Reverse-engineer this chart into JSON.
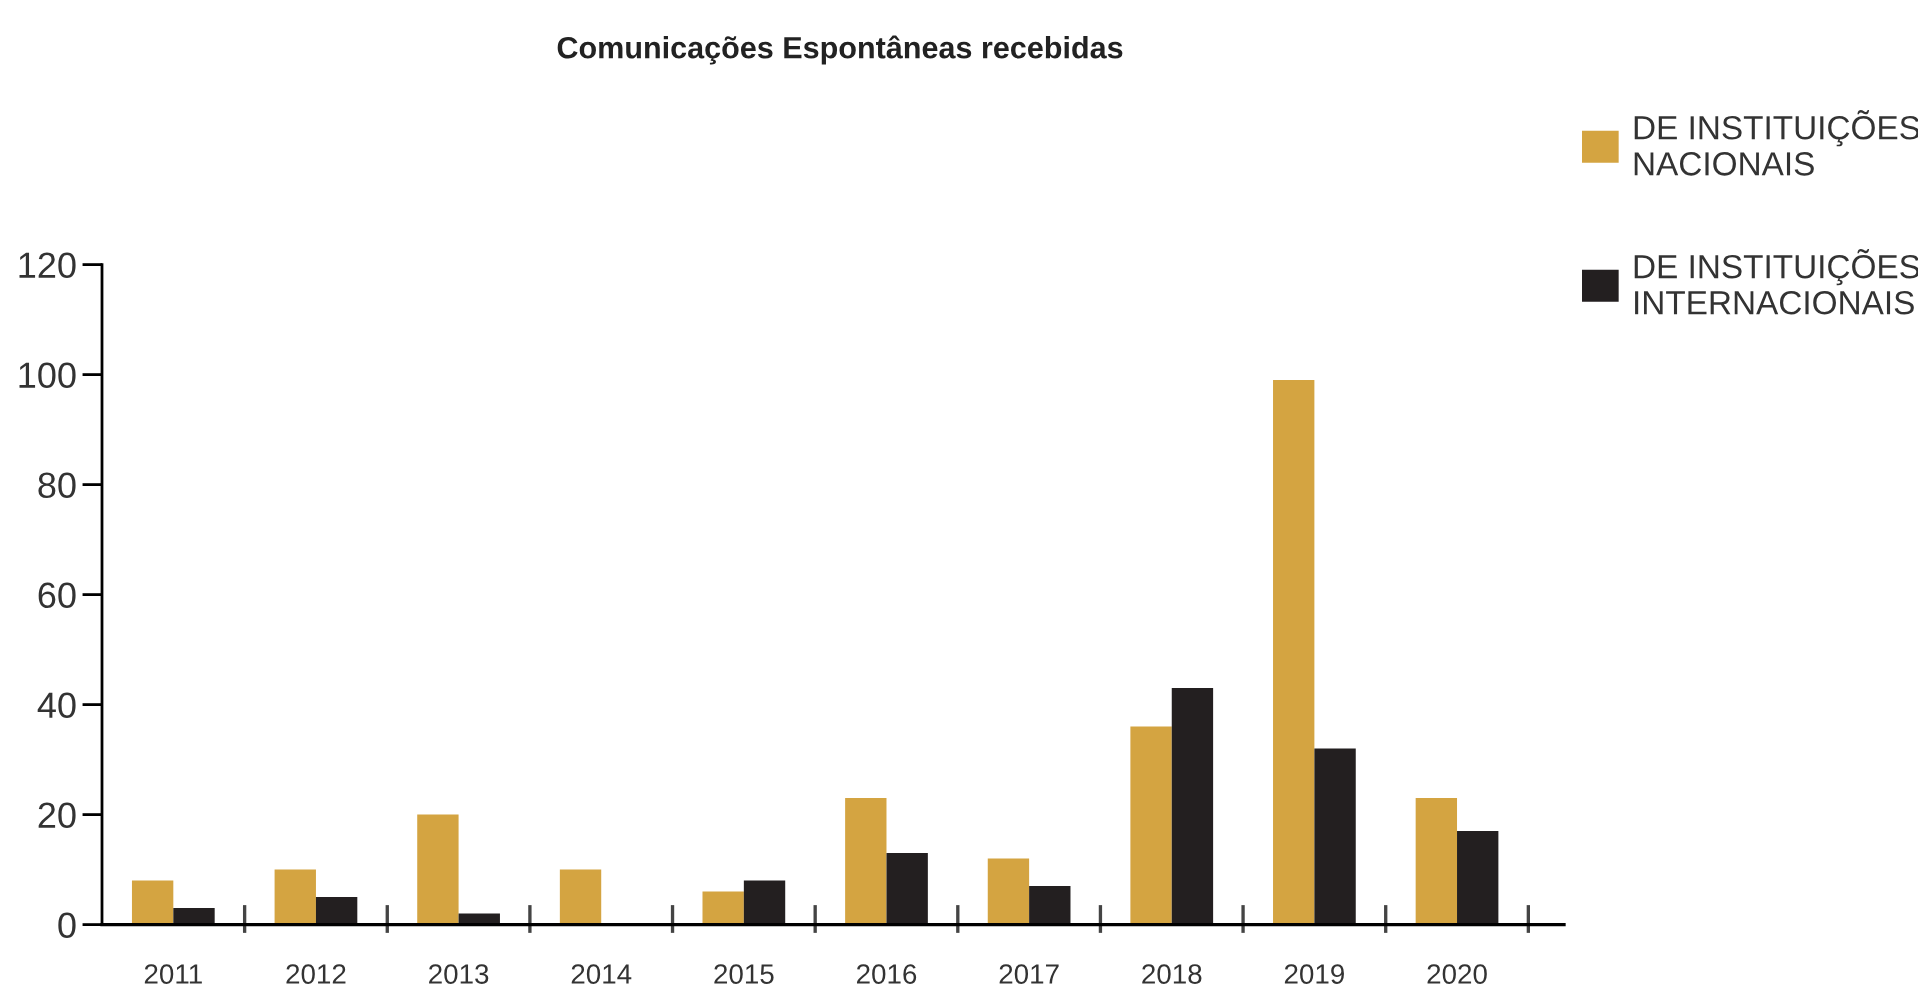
{
  "chart_data": {
    "type": "bar",
    "title": "Comunicações Espontâneas recebidas",
    "categories": [
      "2011",
      "2012",
      "2013",
      "2014",
      "2015",
      "2016",
      "2017",
      "2018",
      "2019",
      "2020"
    ],
    "series": [
      {
        "name": "DE INSTITUIÇÕES\nNACIONAIS",
        "color": "#d4a441",
        "values": [
          8,
          10,
          20,
          10,
          6,
          23,
          12,
          36,
          99,
          23
        ]
      },
      {
        "name": "DE INSTITUIÇÕES\nINTERNACIONAIS",
        "color": "#231f20",
        "values": [
          3,
          5,
          2,
          0,
          8,
          13,
          7,
          43,
          32,
          17
        ]
      }
    ],
    "ylim": [
      0,
      120
    ],
    "yticks": [
      0,
      20,
      40,
      60,
      80,
      100,
      120
    ],
    "grid": false,
    "legend": "top right"
  }
}
